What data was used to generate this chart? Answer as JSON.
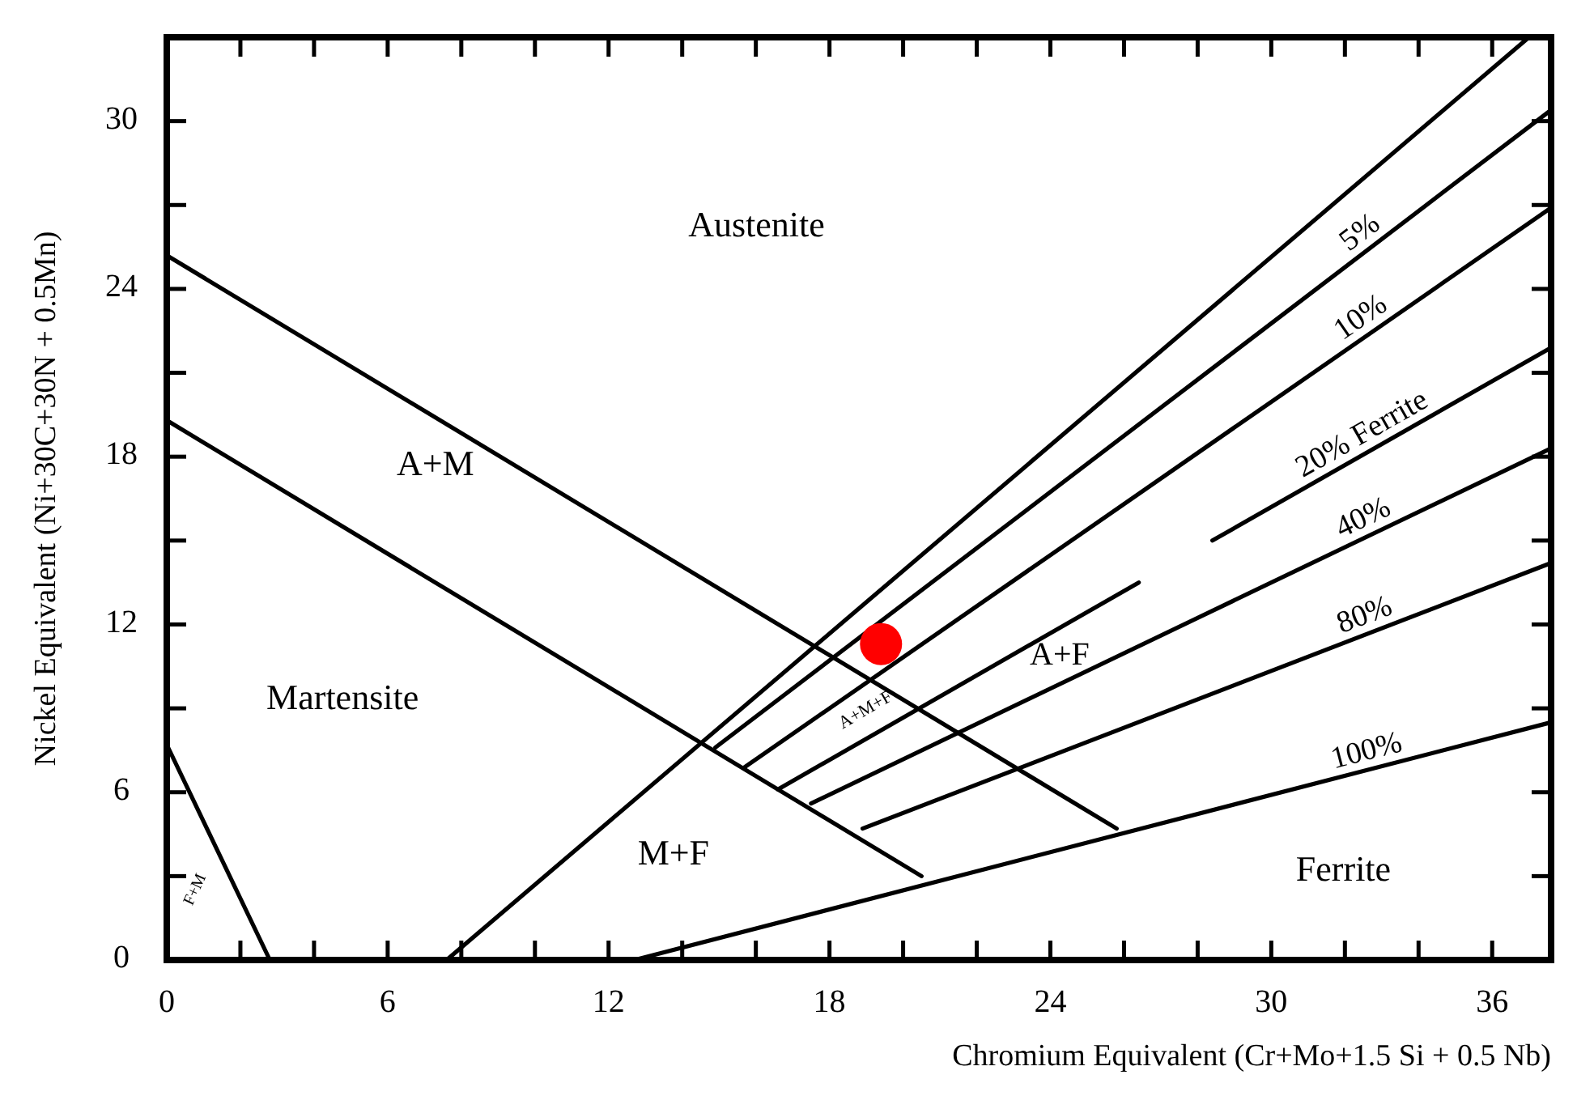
{
  "chart_data": {
    "type": "line",
    "xlabel": "Chromium Equivalent (Cr+Mo+1.5 Si + 0.5 Nb)",
    "ylabel": "Nickel Equivalent (Ni+30C+30N + 0.5Mn)",
    "xlim": [
      0,
      37.6
    ],
    "ylim": [
      0,
      33
    ],
    "xticks": [
      0,
      {
        "value": 2,
        "label": null
      },
      {
        "value": 4,
        "label": null
      },
      6,
      {
        "value": 8,
        "label": null
      },
      {
        "value": 10,
        "label": null
      },
      12,
      {
        "value": 14,
        "label": null
      },
      {
        "value": 16,
        "label": null
      },
      18,
      {
        "value": 20,
        "label": null
      },
      {
        "value": 22,
        "label": null
      },
      24,
      {
        "value": 26,
        "label": null
      },
      {
        "value": 28,
        "label": null
      },
      30,
      {
        "value": 32,
        "label": null
      },
      {
        "value": 34,
        "label": null
      },
      36
    ],
    "yticks": [
      0,
      {
        "value": 3,
        "label": null
      },
      6,
      {
        "value": 9,
        "label": null
      },
      12,
      {
        "value": 15,
        "label": null
      },
      18,
      {
        "value": 21,
        "label": null
      },
      24,
      {
        "value": 27,
        "label": null
      },
      30
    ],
    "grid": false,
    "marker": "none",
    "line_style": "solid",
    "series": [
      {
        "color": "#000000",
        "x": [
          0,
          25.8
        ],
        "values": [
          25.2,
          4.7
        ]
      },
      {
        "color": "#000000",
        "x": [
          0,
          20.5
        ],
        "values": [
          19.3,
          3.0
        ]
      },
      {
        "color": "#000000",
        "x": [
          0,
          2.8
        ],
        "values": [
          7.7,
          0
        ]
      },
      {
        "color": "#000000",
        "x": [
          7.6,
          37.0
        ],
        "values": [
          0,
          33.0
        ]
      },
      {
        "name": "5%",
        "color": "#000000",
        "x": [
          14.9,
          37.6
        ],
        "values": [
          7.6,
          30.4
        ]
      },
      {
        "name": "10%",
        "color": "#000000",
        "x": [
          15.7,
          37.6
        ],
        "values": [
          6.9,
          26.9
        ]
      },
      {
        "name": "20% Ferrite",
        "color": "#000000",
        "x": [
          16.6,
          26.4,
          27.4,
          28.4,
          37.6
        ],
        "values": [
          6.1,
          13.5,
          null,
          15.0,
          21.9
        ]
      },
      {
        "name": "40%",
        "color": "#000000",
        "x": [
          17.5,
          37.6
        ],
        "values": [
          5.6,
          18.3
        ]
      },
      {
        "name": "80%",
        "color": "#000000",
        "x": [
          18.9,
          37.6
        ],
        "values": [
          4.7,
          14.2
        ]
      },
      {
        "name": "100%",
        "color": "#000000",
        "x": [
          12.7,
          37.6
        ],
        "values": [
          0,
          8.5
        ]
      },
      {
        "type": "scatter",
        "marker": "circle",
        "color": "#ff0000",
        "x": [
          19.4
        ],
        "values": [
          11.3
        ]
      }
    ],
    "annotations": [
      "Austenite",
      "A+M",
      "Martensite",
      "M+F",
      "A+F",
      "Ferrite",
      "A+M+F",
      "F+M"
    ]
  }
}
